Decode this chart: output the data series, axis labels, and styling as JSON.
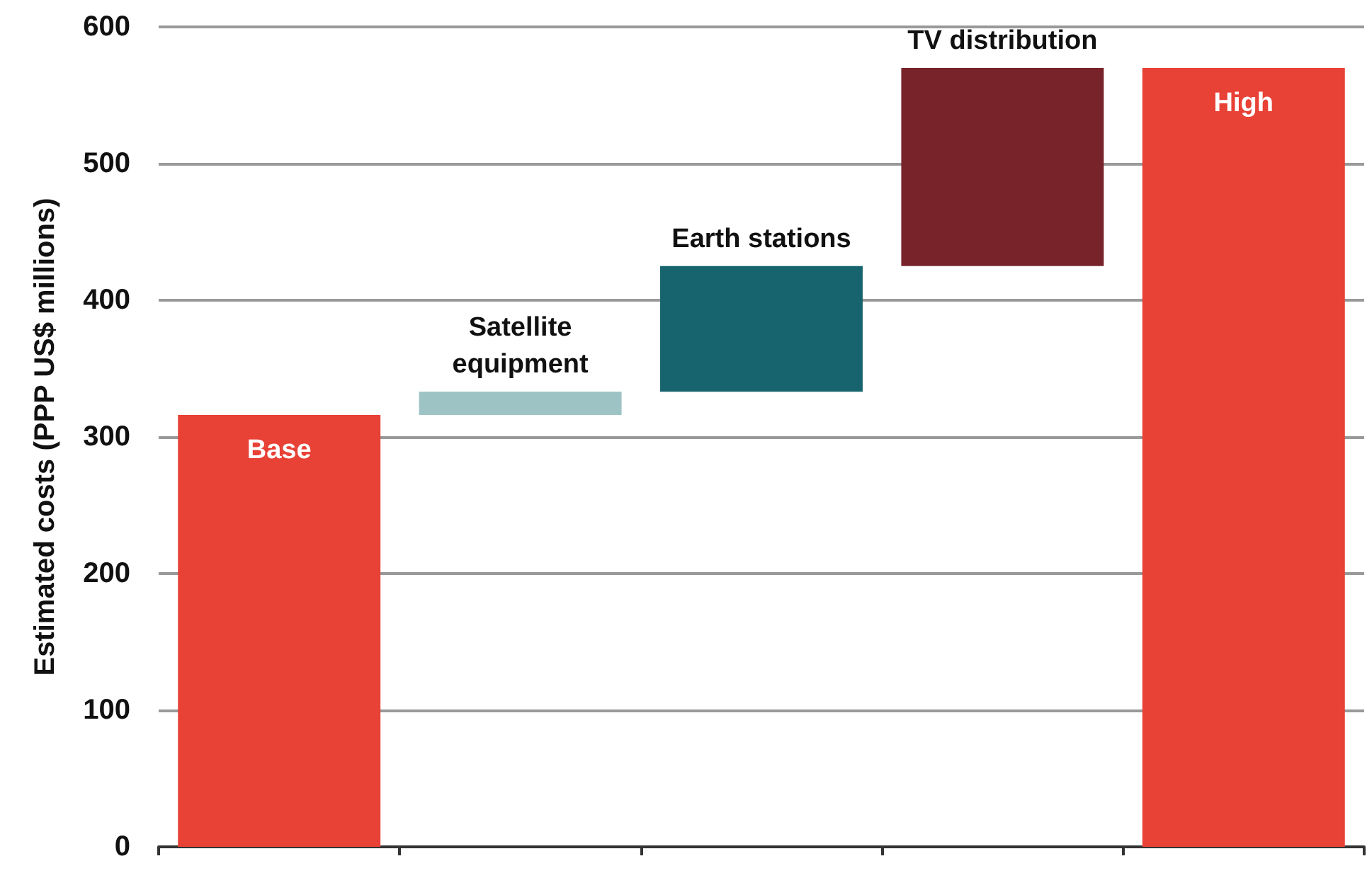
{
  "chart_data": {
    "type": "bar",
    "categories": [
      "Base",
      "Satellite equipment",
      "Earth stations",
      "TV distribution",
      "High"
    ],
    "values": [
      316,
      17,
      92,
      145,
      570
    ],
    "base": [
      0,
      316,
      333,
      425,
      0
    ],
    "colors": [
      "#e84136",
      "#9dc3c5",
      "#17646e",
      "#78232a",
      "#e84136"
    ],
    "ylabel": "Estimated costs (PPP US$ millions)",
    "ylim": [
      0,
      600
    ],
    "yticks": [
      0,
      100,
      200,
      300,
      400,
      500,
      600
    ],
    "grid": "y"
  }
}
